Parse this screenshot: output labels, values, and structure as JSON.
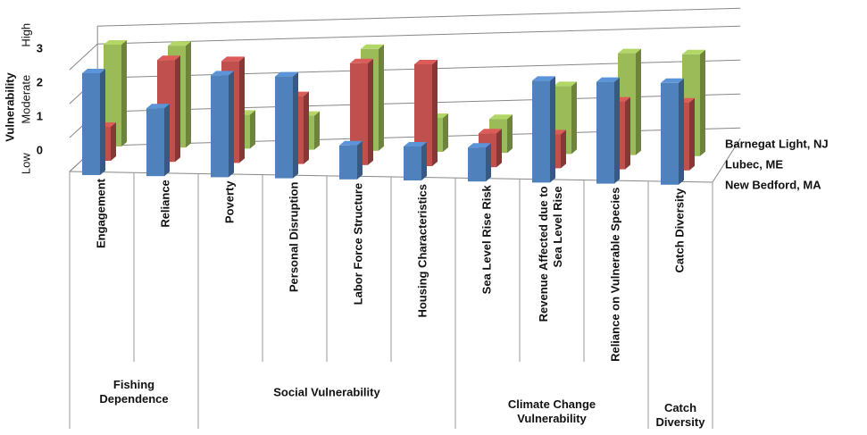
{
  "chart_data": {
    "type": "bar3d",
    "y_label": "Vulnerability",
    "y_level_labels": [
      "Low",
      "Moderate",
      "High"
    ],
    "categories": [
      "Engagement",
      "Reliance",
      "Poverty",
      "Personal Disruption",
      "Labor Force Structure",
      "Housing Characteristics",
      "Sea Level Rise Risk",
      "Revenue Affected due to\nSea Level Rise",
      "Reliance on Vulnerable Species",
      "Catch Diversity"
    ],
    "groups": [
      {
        "name": "Fishing\nDependence",
        "span": [
          0,
          1
        ]
      },
      {
        "name": "Social Vulnerability",
        "span": [
          2,
          5
        ]
      },
      {
        "name": "Climate Change\nVulnerability",
        "span": [
          6,
          8
        ]
      },
      {
        "name": "Catch\nDiversity",
        "span": [
          9,
          9
        ]
      }
    ],
    "series": [
      {
        "name": "New Bedford, MA",
        "color": "#4f81bd",
        "values": [
          3,
          2,
          3,
          3,
          1,
          1,
          1,
          3,
          3,
          3
        ]
      },
      {
        "name": "Lubec, ME",
        "color": "#c0504d",
        "values": [
          1,
          3,
          3,
          2,
          3,
          3,
          1,
          1,
          2,
          2
        ]
      },
      {
        "name": "Barnegat Light, NJ",
        "color": "#9bbb59",
        "values": [
          3,
          3,
          1,
          1,
          3,
          1,
          1,
          2,
          3,
          3
        ]
      }
    ],
    "ylim": [
      0,
      3
    ],
    "yticks": [
      0,
      1,
      2,
      3
    ]
  }
}
